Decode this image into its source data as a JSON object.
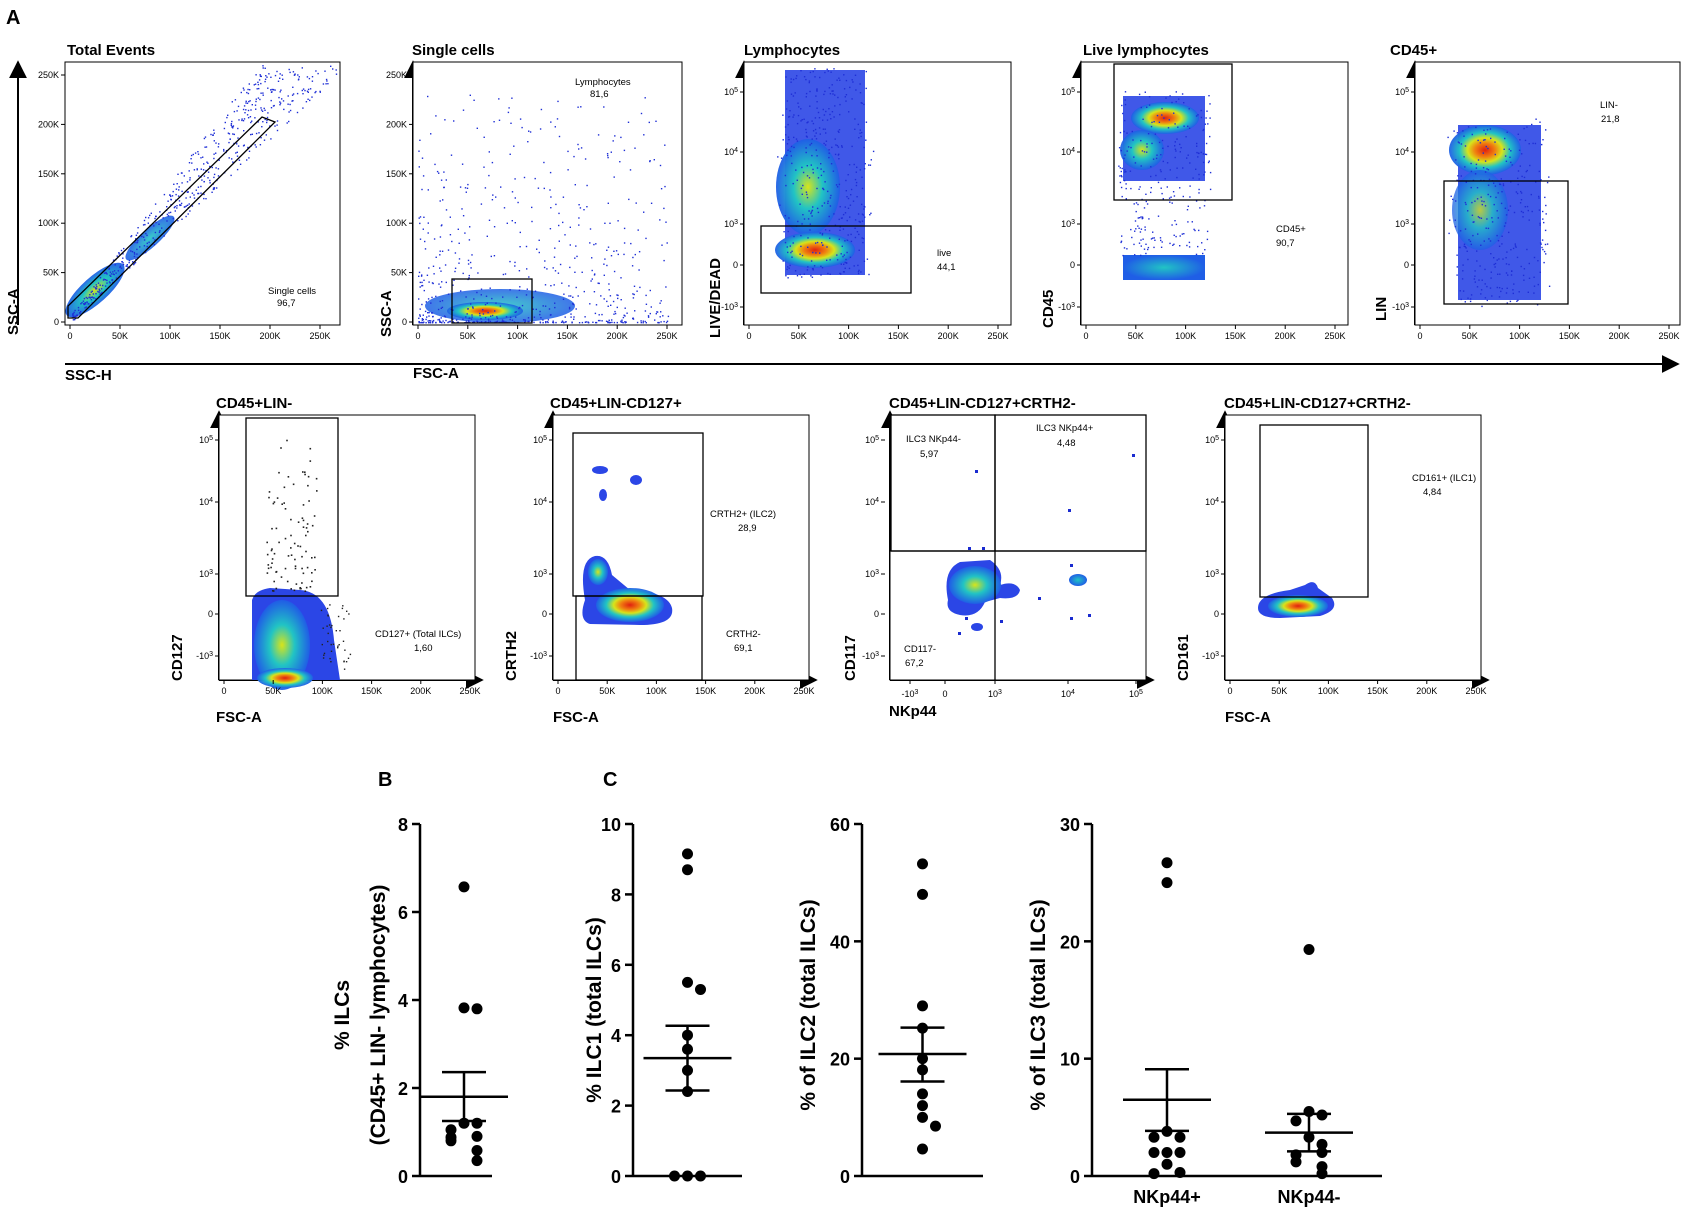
{
  "panel_letters": {
    "A": "A",
    "B": "B",
    "C": "C"
  },
  "colors": {
    "dots": "#1e2fd6",
    "low": "#1f5ee6",
    "mid": "#21c4c4",
    "hi": "#d8e41a",
    "peak": "#e02010"
  },
  "axis_tick_values": {
    "linear": [
      "0",
      "50K",
      "100K",
      "150K",
      "200K",
      "250K"
    ],
    "log_y": [
      "10^5",
      "10^4",
      "10^3",
      "0",
      "-10^3"
    ],
    "log_x": [
      "-10^3",
      "0",
      "10^3",
      "10^4",
      "10^5"
    ]
  },
  "axis_labels": {
    "ssc_h": "SSC-H",
    "ssc_a": "SSC-A",
    "ssc_a2": "SSC-A",
    "fsc_a": "FSC-A",
    "live_dead": "LIVE/DEAD",
    "cd45": "CD45",
    "lin": "LIN",
    "cd127": "CD127",
    "crth2": "CRTH2",
    "cd117": "CD117",
    "cd161": "CD161",
    "fsc_a_r2a": "FSC-A",
    "fsc_a_r2b": "FSC-A",
    "nkp44": "NKp44",
    "fsc_a_r2d": "FSC-A"
  },
  "flow_panels": {
    "total_events": {
      "title": "Total Events",
      "gate_name": "Single cells",
      "gate_value": "96,7"
    },
    "single_cells": {
      "title": "Single cells",
      "gate_name": "Lymphocytes",
      "gate_value": "81,6"
    },
    "lymphocytes": {
      "title": "Lymphocytes",
      "gate_name": "live",
      "gate_value": "44,1"
    },
    "live_lymphocytes": {
      "title": "Live lymphocytes",
      "gate_name": "CD45+",
      "gate_value": "90,7"
    },
    "cd45pos": {
      "title": "CD45+",
      "gate_name": "LIN-",
      "gate_value": "21,8"
    },
    "cd45lin": {
      "title": "CD45+LIN-",
      "gate_name": "CD127+ (Total ILCs)",
      "gate_value": "1,60"
    },
    "cd127": {
      "title": "CD45+LIN-CD127+",
      "gate1_name": "CRTH2+ (ILC2)",
      "gate1_value": "28,9",
      "gate2_name": "CRTH2-",
      "gate2_value": "69,1"
    },
    "crth2neg_a": {
      "title": "CD45+LIN-CD127+CRTH2-",
      "q1_name": "ILC3 NKp44-",
      "q1_value": "5,97",
      "q2_name": "ILC3 NKp44+",
      "q2_value": "4,48",
      "q3_name": "CD117-",
      "q3_value": "67,2"
    },
    "crth2neg_b": {
      "title": "CD45+LIN-CD127+CRTH2-",
      "gate_name": "CD161+ (ILC1)",
      "gate_value": "4,84"
    }
  },
  "chart_data": [
    {
      "type": "scatter",
      "panel": "B",
      "ylabel_line1": "% ILCs",
      "ylabel_line2": "(CD45+ LIN- lymphocytes)",
      "ylim": [
        0,
        8
      ],
      "yticks": [
        "0",
        "2",
        "4",
        "6",
        "8"
      ],
      "values": [
        6.57,
        3.82,
        3.8,
        1.2,
        1.2,
        1.05,
        0.9,
        0.88,
        0.8,
        0.58,
        0.35
      ],
      "mean": 1.8,
      "sem_low": 1.25,
      "sem_high": 2.36
    },
    {
      "type": "scatter",
      "panel": "C1",
      "ylabel": "% ILC1 (total ILCs)",
      "ylim": [
        0,
        10
      ],
      "yticks": [
        "0",
        "2",
        "4",
        "6",
        "8",
        "10"
      ],
      "values": [
        9.15,
        8.7,
        5.5,
        5.3,
        4.0,
        3.6,
        3.0,
        2.4,
        0.0,
        0.0,
        0.0
      ],
      "mean": 3.35,
      "sem_low": 2.43,
      "sem_high": 4.27
    },
    {
      "type": "scatter",
      "panel": "C2",
      "ylabel": "% of ILC2 (total ILCs)",
      "ylim": [
        0,
        60
      ],
      "yticks": [
        "0",
        "20",
        "40",
        "60"
      ],
      "values": [
        53.2,
        48.0,
        29.0,
        25.2,
        20.0,
        18.1,
        14.0,
        12.0,
        10.0,
        8.5,
        4.6
      ],
      "mean": 20.8,
      "sem_low": 16.1,
      "sem_high": 25.3
    },
    {
      "type": "scatter",
      "panel": "C3",
      "ylabel": "% of ILC3 (total ILCs)",
      "ylim": [
        0,
        30
      ],
      "yticks": [
        "0",
        "10",
        "20",
        "30"
      ],
      "categories": [
        "NKp44+",
        "NKp44-"
      ],
      "series": [
        {
          "name": "NKp44+",
          "values": [
            26.7,
            25.0,
            3.8,
            3.3,
            3.3,
            2.0,
            2.0,
            2.0,
            1.0,
            0.3,
            0.2
          ],
          "mean": 6.5,
          "sem_low": 3.85,
          "sem_high": 9.1
        },
        {
          "name": "NKp44-",
          "values": [
            19.3,
            5.5,
            5.2,
            4.7,
            3.3,
            2.7,
            2.0,
            1.8,
            1.2,
            0.8,
            0.2
          ],
          "mean": 3.7,
          "sem_low": 2.1,
          "sem_high": 5.3
        }
      ]
    }
  ]
}
